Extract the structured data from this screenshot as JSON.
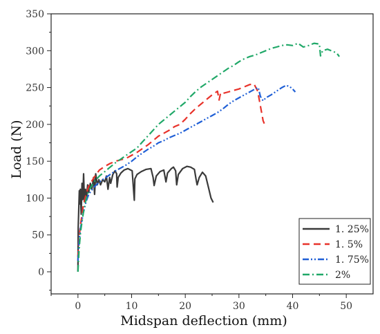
{
  "chart_data": {
    "type": "line",
    "title": "",
    "xlabel": "Midspan deflection (mm)",
    "ylabel": "Load (N)",
    "xlim": [
      -5,
      55
    ],
    "ylim": [
      -30,
      350
    ],
    "xticks": [
      "0",
      "10",
      "20",
      "30",
      "40",
      "50"
    ],
    "yticks": [
      "0",
      "50",
      "100",
      "150",
      "200",
      "250",
      "300",
      "350"
    ],
    "grid": false,
    "legend_position": "bottom-right",
    "series": [
      {
        "name": "1. 25%",
        "color": "#3a3a3a",
        "dash": "solid",
        "points": [
          [
            0,
            0
          ],
          [
            0.05,
            60
          ],
          [
            0.15,
            85
          ],
          [
            0.25,
            110
          ],
          [
            0.35,
            92
          ],
          [
            0.45,
            112
          ],
          [
            0.6,
            78
          ],
          [
            0.75,
            120
          ],
          [
            0.9,
            98
          ],
          [
            1.05,
            133
          ],
          [
            1.2,
            95
          ],
          [
            1.4,
            112
          ],
          [
            1.6,
            100
          ],
          [
            1.8,
            118
          ],
          [
            2.0,
            108
          ],
          [
            2.3,
            120
          ],
          [
            2.6,
            112
          ],
          [
            2.9,
            128
          ],
          [
            3.1,
            105
          ],
          [
            3.3,
            133
          ],
          [
            3.6,
            118
          ],
          [
            3.9,
            125
          ],
          [
            4.2,
            118
          ],
          [
            4.6,
            125
          ],
          [
            5.0,
            122
          ],
          [
            5.3,
            130
          ],
          [
            5.6,
            112
          ],
          [
            5.9,
            128
          ],
          [
            6.1,
            120
          ],
          [
            6.5,
            132
          ],
          [
            6.9,
            137
          ],
          [
            7.2,
            133
          ],
          [
            7.3,
            115
          ],
          [
            7.5,
            128
          ],
          [
            8.0,
            134
          ],
          [
            8.6,
            138
          ],
          [
            9.3,
            140
          ],
          [
            10.1,
            137
          ],
          [
            10.5,
            97
          ],
          [
            10.6,
            126
          ],
          [
            11.0,
            132
          ],
          [
            11.8,
            136
          ],
          [
            12.7,
            139
          ],
          [
            13.6,
            140
          ],
          [
            14.0,
            128
          ],
          [
            14.2,
            117
          ],
          [
            14.6,
            130
          ],
          [
            15.3,
            136
          ],
          [
            16.0,
            138
          ],
          [
            16.4,
            122
          ],
          [
            16.7,
            134
          ],
          [
            17.4,
            140
          ],
          [
            17.8,
            142
          ],
          [
            18.2,
            137
          ],
          [
            18.4,
            118
          ],
          [
            18.7,
            132
          ],
          [
            19.5,
            140
          ],
          [
            20.3,
            143
          ],
          [
            21.0,
            142
          ],
          [
            21.7,
            139
          ],
          [
            22.0,
            126
          ],
          [
            22.2,
            118
          ],
          [
            22.6,
            128
          ],
          [
            23.2,
            135
          ],
          [
            23.8,
            130
          ],
          [
            24.3,
            115
          ],
          [
            24.8,
            100
          ],
          [
            25.2,
            94
          ]
        ]
      },
      {
        "name": "1. 5%",
        "color": "#e8322a",
        "dash": "10,6",
        "points": [
          [
            0,
            20
          ],
          [
            0.2,
            45
          ],
          [
            0.5,
            65
          ],
          [
            1.0,
            90
          ],
          [
            1.5,
            105
          ],
          [
            2.0,
            116
          ],
          [
            3.0,
            128
          ],
          [
            4.0,
            138
          ],
          [
            5.0,
            143
          ],
          [
            6.0,
            147
          ],
          [
            7.0,
            150
          ],
          [
            8.0,
            152
          ],
          [
            9.0,
            154
          ],
          [
            10.0,
            158
          ],
          [
            11.0,
            162
          ],
          [
            12.0,
            167
          ],
          [
            13.0,
            172
          ],
          [
            14.0,
            178
          ],
          [
            15.0,
            184
          ],
          [
            16.0,
            188
          ],
          [
            17.0,
            192
          ],
          [
            18.0,
            197
          ],
          [
            19.0,
            200
          ],
          [
            20.0,
            207
          ],
          [
            21.0,
            215
          ],
          [
            22.0,
            222
          ],
          [
            23.0,
            228
          ],
          [
            24.0,
            234
          ],
          [
            25.0,
            240
          ],
          [
            26.0,
            245
          ],
          [
            26.3,
            233
          ],
          [
            26.6,
            243
          ],
          [
            27.0,
            242
          ],
          [
            28.0,
            244
          ],
          [
            29.0,
            246
          ],
          [
            30.0,
            248
          ],
          [
            31.0,
            251
          ],
          [
            32.0,
            254
          ],
          [
            32.8,
            255
          ],
          [
            33.5,
            245
          ],
          [
            34.0,
            225
          ],
          [
            34.5,
            205
          ],
          [
            34.9,
            198
          ]
        ]
      },
      {
        "name": "1. 75%",
        "color": "#1f5fd6",
        "dash": "9,3,2,3,2,3",
        "points": [
          [
            0,
            15
          ],
          [
            0.2,
            40
          ],
          [
            0.5,
            60
          ],
          [
            1.0,
            80
          ],
          [
            1.5,
            95
          ],
          [
            2.0,
            105
          ],
          [
            3.0,
            115
          ],
          [
            4.0,
            122
          ],
          [
            5.0,
            127
          ],
          [
            6.0,
            132
          ],
          [
            7.0,
            137
          ],
          [
            8.0,
            141
          ],
          [
            9.0,
            145
          ],
          [
            10.0,
            150
          ],
          [
            11.0,
            156
          ],
          [
            12.0,
            161
          ],
          [
            13.0,
            166
          ],
          [
            14.0,
            170
          ],
          [
            15.0,
            175
          ],
          [
            16.0,
            178
          ],
          [
            17.0,
            182
          ],
          [
            18.0,
            185
          ],
          [
            19.0,
            188
          ],
          [
            20.0,
            192
          ],
          [
            21.0,
            196
          ],
          [
            22.0,
            200
          ],
          [
            23.0,
            204
          ],
          [
            24.0,
            208
          ],
          [
            25.0,
            212
          ],
          [
            26.0,
            216
          ],
          [
            27.0,
            221
          ],
          [
            28.0,
            227
          ],
          [
            29.0,
            232
          ],
          [
            30.0,
            236
          ],
          [
            31.0,
            240
          ],
          [
            32.0,
            244
          ],
          [
            33.0,
            248
          ],
          [
            33.6,
            250
          ],
          [
            34.0,
            238
          ],
          [
            34.5,
            232
          ],
          [
            35.0,
            236
          ],
          [
            36.0,
            240
          ],
          [
            37.0,
            245
          ],
          [
            38.0,
            250
          ],
          [
            38.8,
            253
          ],
          [
            39.5,
            251
          ],
          [
            40.0,
            248
          ],
          [
            40.5,
            244
          ]
        ]
      },
      {
        "name": "2%",
        "color": "#20a868",
        "dash": "10,4,2,4",
        "points": [
          [
            0,
            0
          ],
          [
            0.2,
            30
          ],
          [
            0.5,
            55
          ],
          [
            1.0,
            80
          ],
          [
            1.5,
            98
          ],
          [
            2.0,
            110
          ],
          [
            3.0,
            122
          ],
          [
            4.0,
            130
          ],
          [
            5.0,
            136
          ],
          [
            6.0,
            142
          ],
          [
            7.0,
            148
          ],
          [
            8.0,
            153
          ],
          [
            9.0,
            158
          ],
          [
            10.0,
            163
          ],
          [
            11.0,
            168
          ],
          [
            12.0,
            176
          ],
          [
            13.0,
            184
          ],
          [
            14.0,
            192
          ],
          [
            15.0,
            200
          ],
          [
            16.0,
            206
          ],
          [
            17.0,
            212
          ],
          [
            18.0,
            218
          ],
          [
            19.0,
            224
          ],
          [
            20.0,
            230
          ],
          [
            21.0,
            238
          ],
          [
            22.0,
            245
          ],
          [
            23.0,
            251
          ],
          [
            24.0,
            256
          ],
          [
            25.0,
            261
          ],
          [
            26.0,
            266
          ],
          [
            27.0,
            271
          ],
          [
            28.0,
            276
          ],
          [
            29.0,
            280
          ],
          [
            30.0,
            285
          ],
          [
            31.0,
            289
          ],
          [
            32.0,
            292
          ],
          [
            33.0,
            294
          ],
          [
            34.0,
            297
          ],
          [
            35.0,
            300
          ],
          [
            36.0,
            303
          ],
          [
            37.0,
            305
          ],
          [
            38.0,
            307
          ],
          [
            39.0,
            308
          ],
          [
            40.0,
            307
          ],
          [
            41.0,
            310
          ],
          [
            42.0,
            305
          ],
          [
            43.0,
            307
          ],
          [
            44.0,
            310
          ],
          [
            45.0,
            309
          ],
          [
            45.2,
            293
          ],
          [
            45.6,
            300
          ],
          [
            46.5,
            302
          ],
          [
            47.5,
            299
          ],
          [
            48.2,
            297
          ],
          [
            48.7,
            292
          ]
        ]
      }
    ]
  }
}
